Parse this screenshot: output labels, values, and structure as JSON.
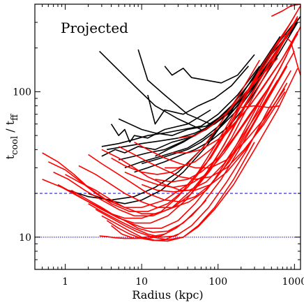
{
  "chart_data": {
    "type": "line",
    "title": "",
    "annotation": "Projected",
    "xlabel": "Radius (kpc)",
    "ylabel_main": "t",
    "ylabel_sub1": "cool",
    "ylabel_mid": " / t",
    "ylabel_sub2": "ff",
    "xscale": "log",
    "yscale": "log",
    "xlim": [
      0.4,
      1200
    ],
    "ylim": [
      6,
      400
    ],
    "xticks": [
      1,
      10,
      100,
      1000
    ],
    "xtick_labels": [
      "1",
      "10",
      "100",
      "1000"
    ],
    "yticks": [
      10,
      100
    ],
    "ytick_labels": [
      "10",
      "100"
    ],
    "hlines": [
      {
        "y": 20,
        "color": "#1a1aff",
        "style": "dashed"
      },
      {
        "y": 10,
        "color": "#1a1aff",
        "style": "dotted"
      }
    ],
    "grid": false,
    "colors": {
      "group_a": "#000000",
      "group_b": "#ff0000"
    },
    "series": [
      {
        "group": "group_a",
        "x": [
          2.8,
          8,
          15,
          30,
          60
        ],
        "y": [
          190,
          110,
          80,
          65,
          55
        ]
      },
      {
        "group": "group_a",
        "x": [
          9,
          12,
          20,
          40,
          80
        ],
        "y": [
          195,
          120,
          95,
          70,
          60
        ]
      },
      {
        "group": "group_a",
        "x": [
          20,
          25,
          35,
          45,
          70,
          110,
          180,
          300
        ],
        "y": [
          150,
          130,
          145,
          125,
          120,
          115,
          130,
          180
        ]
      },
      {
        "group": "group_a",
        "x": [
          12,
          15,
          20,
          35,
          55,
          90,
          150,
          250
        ],
        "y": [
          95,
          60,
          75,
          70,
          80,
          90,
          110,
          150
        ]
      },
      {
        "group": "group_a",
        "x": [
          4,
          5,
          6,
          7,
          8,
          12,
          20,
          40,
          80
        ],
        "y": [
          60,
          50,
          55,
          45,
          50,
          48,
          55,
          60,
          75
        ]
      },
      {
        "group": "group_a",
        "x": [
          5,
          7,
          10,
          15,
          25,
          40,
          70,
          120,
          200,
          400
        ],
        "y": [
          65,
          60,
          55,
          52,
          50,
          55,
          58,
          70,
          90,
          140
        ]
      },
      {
        "group": "group_a",
        "x": [
          3,
          5,
          8,
          12,
          20,
          35,
          60,
          100,
          180,
          350
        ],
        "y": [
          42,
          44,
          47,
          50,
          52,
          55,
          58,
          70,
          95,
          150
        ]
      },
      {
        "group": "group_a",
        "x": [
          3.5,
          6,
          10,
          18,
          30,
          50,
          90,
          160,
          300,
          600
        ],
        "y": [
          40,
          42,
          44,
          46,
          48,
          52,
          60,
          75,
          110,
          180
        ]
      },
      {
        "group": "group_a",
        "x": [
          3,
          4.5,
          6,
          9,
          15,
          25,
          40,
          70,
          130,
          250
        ],
        "y": [
          36,
          40,
          38,
          42,
          40,
          45,
          48,
          55,
          70,
          100
        ]
      },
      {
        "group": "group_a",
        "x": [
          5,
          8,
          12,
          20,
          30,
          50,
          90,
          150,
          280,
          500,
          1000
        ],
        "y": [
          34,
          36,
          38,
          40,
          44,
          50,
          62,
          80,
          120,
          180,
          280
        ]
      },
      {
        "group": "group_a",
        "x": [
          6,
          10,
          15,
          25,
          40,
          65,
          110,
          200,
          400,
          800
        ],
        "y": [
          30,
          33,
          35,
          38,
          41,
          48,
          60,
          85,
          140,
          250
        ]
      },
      {
        "group": "group_a",
        "x": [
          8,
          12,
          20,
          30,
          50,
          80,
          140,
          250,
          500,
          1100
        ],
        "y": [
          28,
          30,
          33,
          36,
          40,
          46,
          58,
          85,
          150,
          300
        ]
      },
      {
        "group": "group_a",
        "x": [
          10,
          15,
          25,
          40,
          60,
          100,
          180,
          350,
          700,
          1200
        ],
        "y": [
          32,
          34,
          37,
          40,
          45,
          55,
          75,
          120,
          220,
          330
        ]
      },
      {
        "group": "group_a",
        "x": [
          15,
          22,
          35,
          55,
          90,
          150,
          280,
          550,
          1100
        ],
        "y": [
          36,
          40,
          45,
          52,
          62,
          80,
          120,
          200,
          320
        ]
      },
      {
        "group": "group_a",
        "x": [
          1.1,
          2,
          4,
          8,
          15,
          30,
          60,
          120,
          250,
          500,
          1100
        ],
        "y": [
          21,
          19,
          18,
          19,
          22,
          28,
          40,
          62,
          100,
          170,
          300
        ]
      },
      {
        "group": "group_a",
        "x": [
          2,
          3.5,
          6,
          10,
          18,
          35,
          70,
          140,
          300,
          650
        ],
        "y": [
          20,
          18,
          17,
          18,
          21,
          28,
          42,
          70,
          130,
          240
        ]
      },
      {
        "group": "group_b",
        "x": [
          0.5,
          0.8,
          1.3,
          2,
          3.5,
          6,
          10,
          20,
          40,
          80,
          150,
          300,
          600,
          1200
        ],
        "y": [
          38,
          33,
          27,
          22,
          18,
          16,
          16,
          18,
          23,
          35,
          60,
          120,
          210,
          390
        ]
      },
      {
        "group": "group_b",
        "x": [
          0.6,
          1,
          1.6,
          2.5,
          4,
          7,
          12,
          22,
          40,
          70,
          130,
          250,
          500,
          1000
        ],
        "y": [
          33,
          29,
          24,
          20,
          17,
          15,
          15,
          17,
          22,
          32,
          55,
          100,
          180,
          330
        ]
      },
      {
        "group": "group_b",
        "x": [
          0.7,
          1.1,
          1.8,
          3,
          5,
          8,
          14,
          25,
          45,
          80,
          140,
          260,
          500,
          1100
        ],
        "y": [
          28,
          25,
          21,
          18,
          15.5,
          14,
          14,
          16,
          21,
          30,
          50,
          90,
          170,
          320
        ]
      },
      {
        "group": "group_b",
        "x": [
          0.5,
          0.9,
          1.5,
          2.5,
          4,
          6,
          10,
          18,
          30,
          55,
          100,
          200,
          400,
          900
        ],
        "y": [
          25,
          22,
          19,
          16.5,
          14.5,
          13.5,
          13.5,
          15,
          19,
          28,
          46,
          85,
          160,
          300
        ]
      },
      {
        "group": "group_b",
        "x": [
          0.8,
          1.3,
          2,
          3,
          5,
          8,
          13,
          22,
          38,
          65,
          120,
          220,
          450,
          1000
        ],
        "y": [
          23,
          20,
          17.5,
          15.5,
          13.5,
          12.5,
          12.5,
          14,
          18,
          26,
          43,
          80,
          150,
          290
        ]
      },
      {
        "group": "group_b",
        "x": [
          1.2,
          2,
          3,
          4.5,
          7,
          11,
          18,
          30,
          50,
          90,
          170,
          320,
          650,
          1200
        ],
        "y": [
          21,
          18,
          16,
          14,
          12.5,
          11.5,
          11.5,
          13,
          17,
          25,
          42,
          78,
          145,
          280
        ]
      },
      {
        "group": "group_b",
        "x": [
          1.5,
          2.5,
          4,
          6,
          9,
          14,
          22,
          35,
          60,
          110,
          200,
          400,
          800
        ],
        "y": [
          19,
          16.5,
          14.5,
          13,
          11.5,
          10.8,
          11,
          12.5,
          16.5,
          25,
          42,
          80,
          150
        ]
      },
      {
        "group": "group_b",
        "x": [
          2,
          3,
          5,
          8,
          12,
          18,
          28,
          45,
          75,
          130,
          240,
          450,
          900
        ],
        "y": [
          17,
          15,
          13,
          11.5,
          10.5,
          10,
          10.2,
          12,
          16,
          24,
          40,
          75,
          140
        ]
      },
      {
        "group": "group_b",
        "x": [
          2.5,
          4,
          6,
          9,
          14,
          22,
          35,
          55,
          90,
          160,
          300,
          600,
          1100
        ],
        "y": [
          15.5,
          13.5,
          12,
          10.8,
          10,
          9.6,
          10,
          11.8,
          15.5,
          23,
          40,
          75,
          145
        ]
      },
      {
        "group": "group_b",
        "x": [
          3,
          4.5,
          7,
          10,
          15,
          22,
          35,
          55,
          90,
          160,
          300
        ],
        "y": [
          14,
          12.5,
          11,
          10,
          9.5,
          9.4,
          10,
          12,
          16,
          25,
          45
        ]
      },
      {
        "group": "group_b",
        "x": [
          3.5,
          5,
          7,
          10,
          14,
          20,
          30
        ],
        "y": [
          13,
          11.5,
          10.5,
          9.8,
          9.5,
          9.6,
          10.5
        ]
      },
      {
        "group": "group_b",
        "x": [
          4,
          5.5,
          8,
          12,
          18,
          28,
          45,
          70
        ],
        "y": [
          12,
          10.5,
          9.8,
          9.8,
          10.2,
          11.5,
          14,
          18
        ]
      },
      {
        "group": "group_b",
        "x": [
          2.8,
          3.5,
          4.5,
          6,
          8,
          11,
          15,
          20
        ],
        "y": [
          10.2,
          10.1,
          9.9,
          9.8,
          9.8,
          10,
          10.2,
          10.5
        ]
      },
      {
        "group": "group_b",
        "x": [
          1,
          1.5,
          2.5,
          4,
          6,
          10,
          16,
          26,
          45,
          80,
          150,
          280,
          550,
          1100
        ],
        "y": [
          27,
          24,
          21,
          18,
          16,
          14.5,
          14.5,
          16,
          20,
          29,
          48,
          90,
          170,
          330
        ]
      },
      {
        "group": "group_b",
        "x": [
          1.5,
          2.5,
          4,
          6,
          10,
          16,
          26,
          42,
          70,
          120,
          220,
          420,
          800
        ],
        "y": [
          31,
          27,
          23,
          20,
          17.5,
          16,
          16,
          17.5,
          21,
          30,
          50,
          95,
          180
        ]
      },
      {
        "group": "group_b",
        "x": [
          2,
          3,
          5,
          8,
          12,
          20,
          32,
          50,
          80,
          140,
          260,
          500,
          1000
        ],
        "y": [
          37,
          32,
          27,
          23,
          20,
          18,
          17.5,
          19,
          23,
          33,
          55,
          100,
          190
        ]
      },
      {
        "group": "group_b",
        "x": [
          3,
          5,
          8,
          12,
          20,
          32,
          50,
          80,
          130,
          230,
          420,
          800
        ],
        "y": [
          40,
          35,
          30,
          26,
          23,
          21,
          21,
          23,
          28,
          40,
          65,
          115
        ]
      },
      {
        "group": "group_b",
        "x": [
          5,
          8,
          12,
          20,
          32,
          50,
          80,
          130,
          220,
          400,
          750
        ],
        "y": [
          42,
          37,
          33,
          29,
          26,
          25,
          26,
          30,
          40,
          60,
          100
        ]
      },
      {
        "group": "group_b",
        "x": [
          8,
          12,
          20,
          32,
          50,
          80,
          130,
          220,
          400,
          750
        ],
        "y": [
          45,
          40,
          35,
          32,
          30,
          30,
          34,
          45,
          65,
          105
        ]
      },
      {
        "group": "group_b",
        "x": [
          6,
          10,
          16,
          26,
          42,
          70,
          120,
          220,
          400
        ],
        "y": [
          28,
          25,
          23,
          22,
          23,
          27,
          38,
          60,
          95
        ]
      },
      {
        "group": "group_b",
        "x": [
          10,
          16,
          26,
          42,
          70,
          120,
          200,
          350,
          600
        ],
        "y": [
          23,
          21,
          20.5,
          21,
          24,
          32,
          48,
          75,
          120
        ]
      },
      {
        "group": "group_b",
        "x": [
          15,
          25,
          40,
          60,
          100,
          160,
          260,
          450
        ],
        "y": [
          25,
          24,
          25,
          28,
          35,
          48,
          70,
          105
        ]
      },
      {
        "group": "group_b",
        "x": [
          20,
          30,
          50,
          80,
          130,
          220,
          380,
          650,
          1100
        ],
        "y": [
          30,
          30,
          33,
          40,
          52,
          72,
          105,
          160,
          250
        ]
      },
      {
        "group": "group_b",
        "x": [
          30,
          50,
          80,
          130,
          200,
          350,
          600
        ],
        "y": [
          48,
          50,
          58,
          72,
          92,
          125,
          170
        ]
      },
      {
        "group": "group_b",
        "x": [
          25,
          40,
          60,
          100,
          160,
          260,
          420,
          700,
          1100
        ],
        "y": [
          38,
          38,
          40,
          47,
          60,
          80,
          115,
          170,
          260
        ]
      },
      {
        "group": "group_b",
        "x": [
          200,
          300,
          450,
          650
        ],
        "y": [
          78,
          80,
          78,
          80
        ]
      },
      {
        "group": "group_b",
        "x": [
          700,
          900,
          1100,
          1200
        ],
        "y": [
          250,
          220,
          150,
          130
        ]
      },
      {
        "group": "group_b",
        "x": [
          500,
          700,
          900,
          1200
        ],
        "y": [
          330,
          360,
          390,
          400
        ]
      },
      {
        "group": "group_b",
        "x": [
          4,
          6,
          10,
          16,
          25,
          40,
          65,
          110,
          200,
          350
        ],
        "y": [
          35,
          31,
          28,
          27,
          28,
          32,
          42,
          62,
          100,
          165
        ]
      }
    ]
  }
}
